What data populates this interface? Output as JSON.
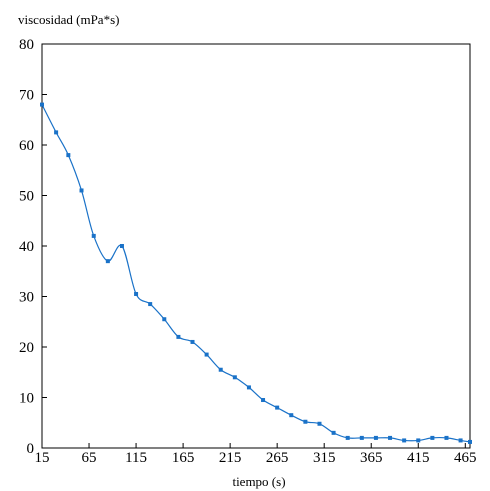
{
  "chart_data": {
    "type": "line",
    "title": "",
    "xlabel": "tiempo (s)",
    "ylabel": "viscosidad (mPa*s)",
    "xlim": [
      15,
      470
    ],
    "ylim": [
      0,
      80
    ],
    "xticks": [
      "15",
      "65",
      "115",
      "165",
      "215",
      "265",
      "315",
      "365",
      "415",
      "465"
    ],
    "yticks": [
      "0",
      "10",
      "20",
      "30",
      "40",
      "50",
      "60",
      "70",
      "80"
    ],
    "grid": false,
    "legend": "none",
    "series": [
      {
        "color": "#1a72c8",
        "x": [
          15,
          30,
          43,
          57,
          70,
          85,
          100,
          115,
          130,
          145,
          160,
          175,
          190,
          205,
          220,
          235,
          250,
          265,
          280,
          295,
          310,
          325,
          340,
          355,
          370,
          385,
          400,
          415,
          430,
          445,
          460,
          470
        ],
        "y": [
          68,
          62.5,
          58,
          51,
          42,
          37,
          40,
          30.5,
          28.5,
          25.5,
          22,
          21,
          18.5,
          15.5,
          14,
          12,
          9.5,
          8,
          6.5,
          5.2,
          4.8,
          3,
          2,
          2,
          2,
          2,
          1.5,
          1.5,
          2,
          2,
          1.5,
          1.2
        ]
      }
    ]
  }
}
